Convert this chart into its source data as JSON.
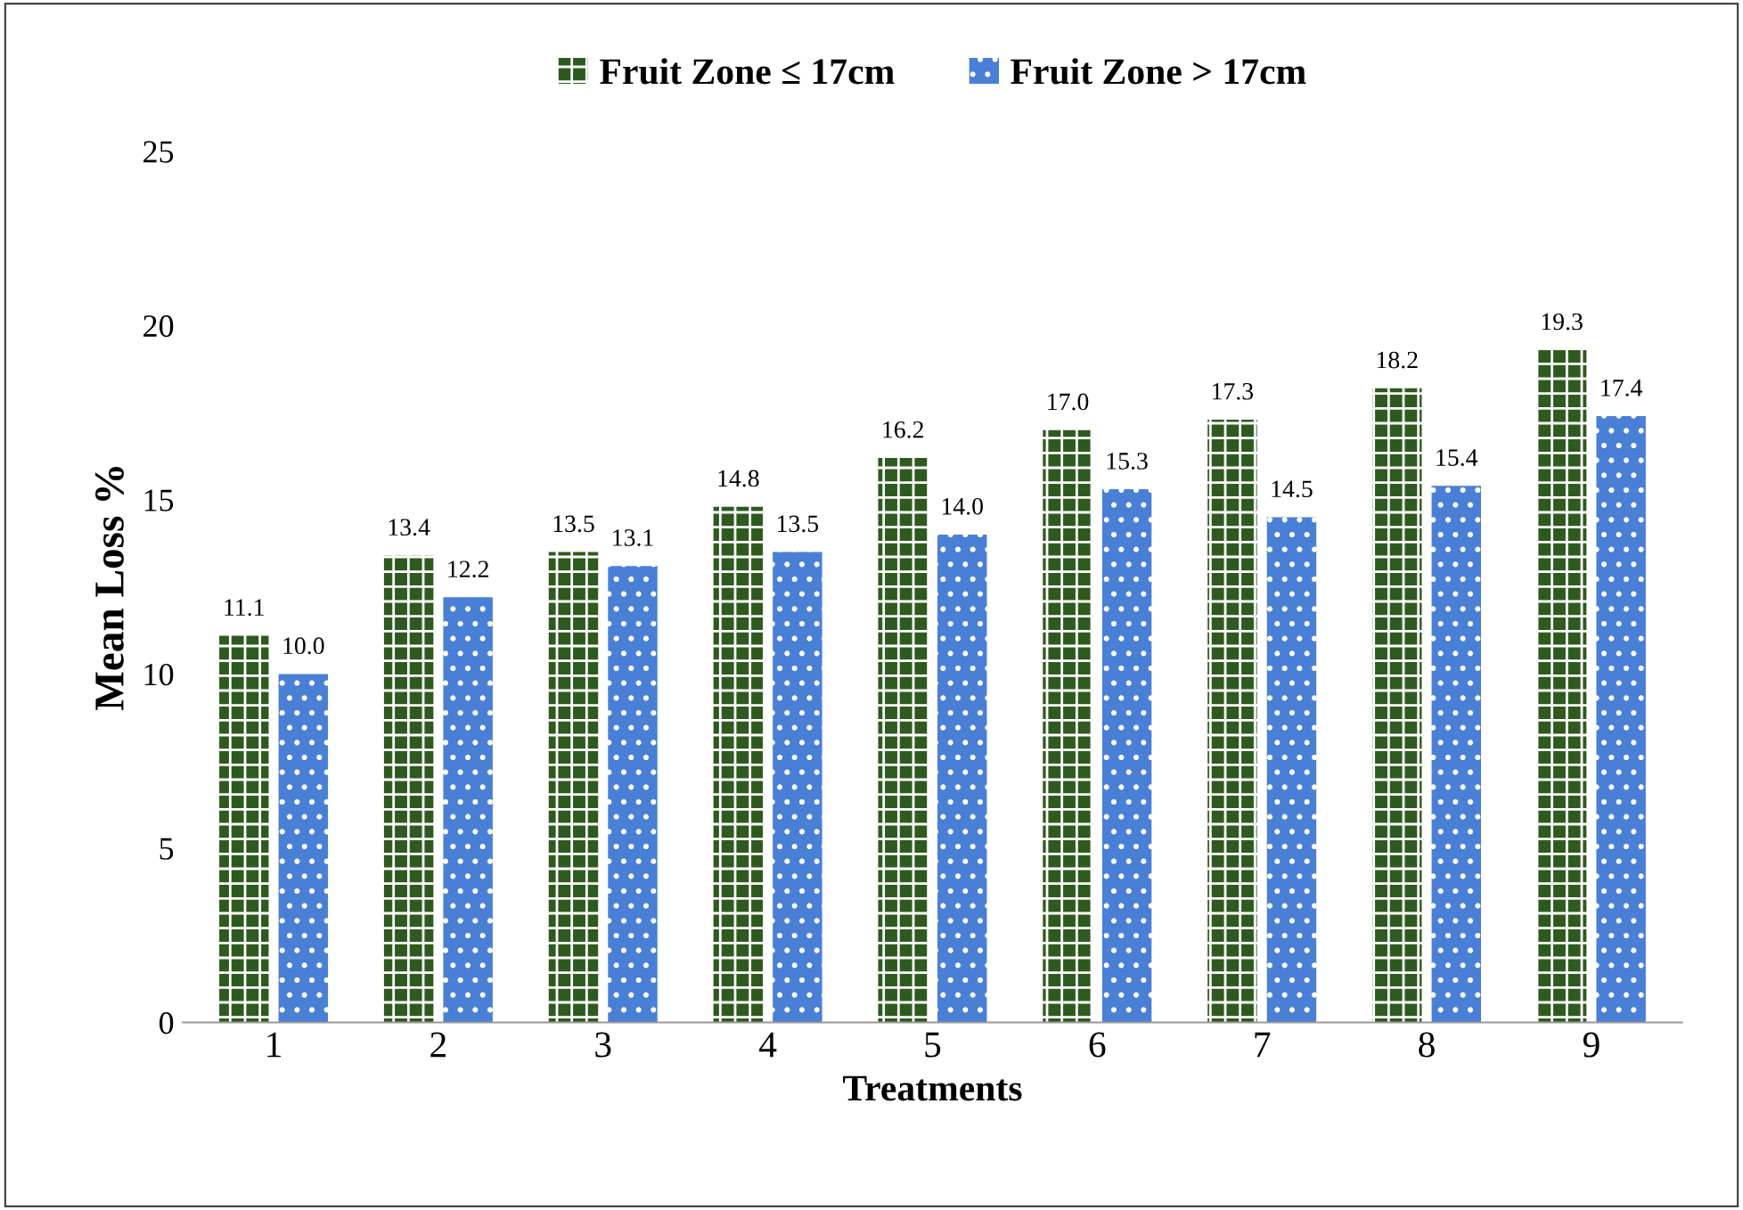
{
  "chart_data": {
    "type": "bar",
    "xlabel": "Treatments",
    "ylabel": "Mean Loss %",
    "categories": [
      "1",
      "2",
      "3",
      "4",
      "5",
      "6",
      "7",
      "8",
      "9"
    ],
    "series": [
      {
        "name": "Fruit Zone ≤ 17cm",
        "color": "#2f5a1f",
        "values": [
          11.1,
          13.4,
          13.5,
          14.8,
          16.2,
          17.0,
          17.3,
          18.2,
          19.3
        ],
        "value_labels": [
          "11.1",
          "13.4",
          "13.5",
          "14.8",
          "16.2",
          "17.0",
          "17.3",
          "18.2",
          "19.3"
        ]
      },
      {
        "name": "Fruit Zone > 17cm",
        "color": "#4a7fd6",
        "values": [
          10.0,
          12.2,
          13.1,
          13.5,
          14.0,
          15.3,
          14.5,
          15.4,
          17.4
        ],
        "value_labels": [
          "10.0",
          "12.2",
          "13.1",
          "13.5",
          "14.0",
          "15.3",
          "14.5",
          "15.4",
          "17.4"
        ]
      }
    ],
    "ylim": [
      0,
      25
    ],
    "yticks": [
      0,
      5,
      10,
      15,
      20,
      25
    ],
    "grid": false,
    "legend": "top"
  }
}
